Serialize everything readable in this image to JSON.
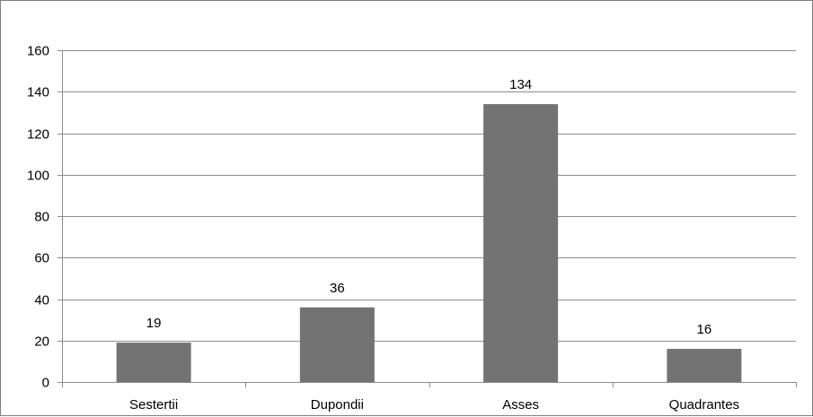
{
  "chart_data": {
    "type": "bar",
    "title": "",
    "xlabel": "",
    "ylabel": "",
    "categories": [
      "Sestertii",
      "Dupondii",
      "Asses",
      "Quadrantes"
    ],
    "values": [
      19,
      36,
      134,
      16
    ],
    "data_labels": [
      "19",
      "36",
      "134",
      "16"
    ],
    "ylim": [
      0,
      160
    ],
    "yticks": [
      "0",
      "20",
      "40",
      "60",
      "80",
      "100",
      "120",
      "140",
      "160"
    ],
    "grid": true,
    "legend": "none",
    "bar_color": "#737373",
    "grid_color": "#8c8c8c"
  }
}
